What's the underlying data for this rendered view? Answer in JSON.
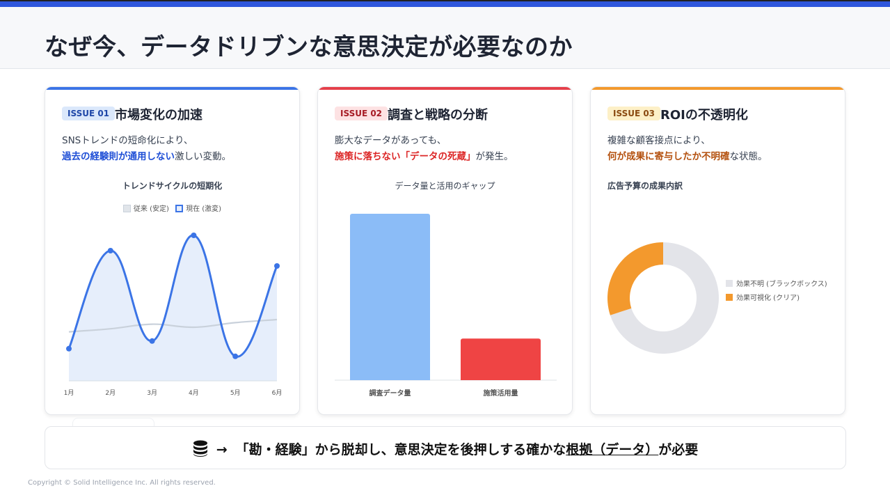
{
  "header": {
    "title": "なぜ今、データドリブンな意思決定が必要なのか"
  },
  "colors": {
    "brand_blue": "#2f57dc",
    "issue1": "#3b74e6",
    "issue2": "#e5404a",
    "issue3": "#f3992d",
    "bar_blue": "#8bbcf7",
    "bar_red": "#ef4444",
    "gray_segment": "#e3e4e9"
  },
  "cards": [
    {
      "badge": "ISSUE 01",
      "title": "市場変化の加速",
      "desc_line1": "SNSトレンドの短命化により、",
      "desc_em": "過去の経験則が通用しない",
      "desc_rest": "激しい変動。"
    },
    {
      "badge": "ISSUE 02",
      "title": "調査と戦略の分断",
      "desc_line1": "膨大なデータがあっても、",
      "desc_em": "施策に落ちない「データの死蔵」",
      "desc_rest": "が発生。"
    },
    {
      "badge": "ISSUE 03",
      "title": "ROIの不透明化",
      "desc_line1": "複雑な顧客接点により、",
      "desc_em": "何が成果に寄与したか不明確",
      "desc_rest": "な状態。"
    }
  ],
  "chart_data": [
    {
      "type": "line",
      "title": "トレンドサイクルの短期化",
      "categories": [
        "1月",
        "2月",
        "3月",
        "4月",
        "5月",
        "6月"
      ],
      "series": [
        {
          "name": "従来 (安定)",
          "values": [
            32,
            34,
            37,
            35,
            38,
            40
          ],
          "color": "#c9d1db"
        },
        {
          "name": "現在 (激変)",
          "values": [
            21,
            85,
            26,
            95,
            16,
            75
          ],
          "color": "#3b74e6",
          "fill": true
        }
      ],
      "ylim": [
        0,
        100
      ],
      "grid": false,
      "legend_position": "top"
    },
    {
      "type": "bar",
      "title": "データ量と活用のギャップ",
      "categories": [
        "調査データ量",
        "施策活用量"
      ],
      "values": [
        100,
        25
      ],
      "colors": [
        "#8bbcf7",
        "#ef4444"
      ],
      "ylim": [
        0,
        100
      ]
    },
    {
      "type": "pie",
      "title": "広告予算の成果内訳",
      "categories": [
        "効果不明 (ブラックボックス)",
        "効果可視化 (クリア)"
      ],
      "values": [
        70,
        30
      ],
      "colors": [
        "#e3e4e9",
        "#f3992d"
      ],
      "donut": true,
      "legend_position": "right"
    }
  ],
  "bottom": {
    "arrow": "→",
    "msg_before": "「勘・経験」から脱却し、意思決定を後押しする確かな",
    "msg_underlined": "根拠（データ）",
    "msg_after": "が必要"
  },
  "footer": {
    "copyright": "Copyright © Solid Intelligence Inc. All rights reserved."
  }
}
